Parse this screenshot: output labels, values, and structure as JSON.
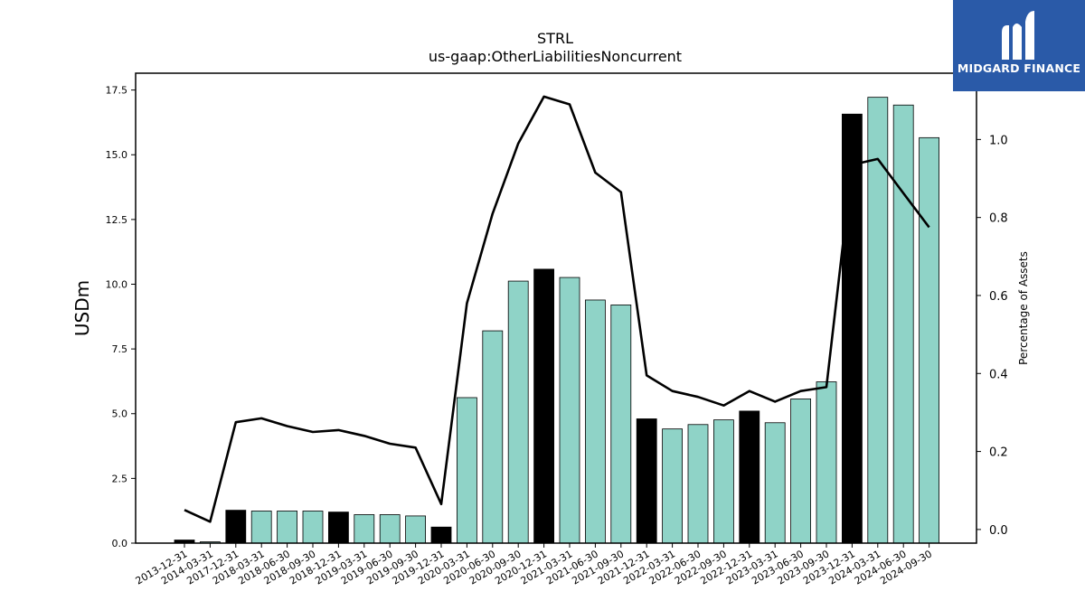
{
  "title": "STRL",
  "subtitle": "us-gaap:OtherLiabilitiesNoncurrent",
  "logo": {
    "text": "MIDGARD FINANCE",
    "background": "#2a5aa8"
  },
  "chart_data": {
    "type": "bar",
    "title": "STRL",
    "subtitle": "us-gaap:OtherLiabilitiesNoncurrent",
    "ylabel": "USDm",
    "y2label": "Percentage of Assets",
    "ylim": [
      0,
      18.15
    ],
    "y2lim": [
      -0.035,
      1.17
    ],
    "yticks": [
      "0.0",
      "2.5",
      "5.0",
      "7.5",
      "10.0",
      "12.5",
      "15.0",
      "17.5"
    ],
    "y2ticks": [
      "0.0",
      "0.2",
      "0.4",
      "0.6",
      "0.8",
      "1.0"
    ],
    "grid": false,
    "colors": {
      "year_end": "#000000",
      "quarter": "#8fd3c7",
      "line": "#000000"
    },
    "categories": [
      "2013-12-31",
      "2014-03-31",
      "2017-12-31",
      "2018-03-31",
      "2018-06-30",
      "2018-09-30",
      "2018-12-31",
      "2019-03-31",
      "2019-06-30",
      "2019-09-30",
      "2019-12-31",
      "2020-03-31",
      "2020-06-30",
      "2020-09-30",
      "2020-12-31",
      "2021-03-31",
      "2021-06-30",
      "2021-09-30",
      "2021-12-31",
      "2022-03-31",
      "2022-06-30",
      "2022-09-30",
      "2022-12-31",
      "2023-03-31",
      "2023-06-30",
      "2023-09-30",
      "2023-12-31",
      "2024-03-31",
      "2024-06-30",
      "2024-09-30"
    ],
    "series": [
      {
        "type": "bar",
        "axis": "left",
        "values": [
          0.12,
          0.05,
          1.27,
          1.24,
          1.24,
          1.24,
          1.2,
          1.1,
          1.1,
          1.05,
          0.62,
          5.62,
          8.2,
          10.12,
          10.58,
          10.26,
          9.39,
          9.2,
          4.8,
          4.41,
          4.58,
          4.76,
          5.1,
          4.65,
          5.57,
          6.23,
          16.57,
          17.22,
          16.92,
          15.66
        ],
        "year_end": [
          true,
          false,
          true,
          false,
          false,
          false,
          true,
          false,
          false,
          false,
          true,
          false,
          false,
          false,
          true,
          false,
          false,
          false,
          true,
          false,
          false,
          false,
          true,
          false,
          false,
          false,
          true,
          false,
          false,
          false
        ]
      },
      {
        "type": "line",
        "axis": "right",
        "values": [
          0.05,
          0.02,
          0.275,
          0.285,
          0.265,
          0.25,
          0.255,
          0.24,
          0.22,
          0.21,
          0.065,
          0.58,
          0.81,
          0.99,
          1.11,
          1.09,
          0.915,
          0.865,
          0.395,
          0.355,
          0.34,
          0.318,
          0.355,
          0.328,
          0.355,
          0.365,
          0.935,
          0.95,
          0.862,
          0.775
        ]
      }
    ]
  }
}
